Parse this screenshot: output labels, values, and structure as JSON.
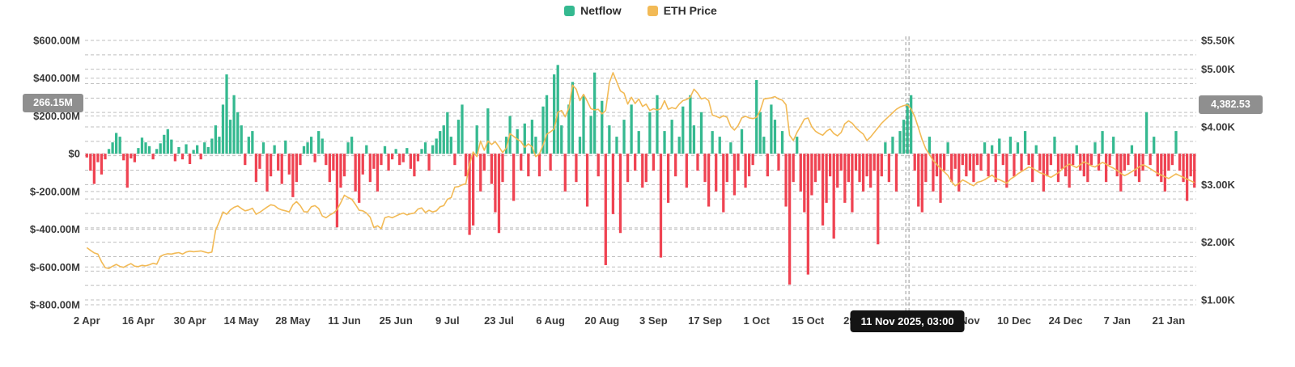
{
  "legend": {
    "items": [
      {
        "label": "Netflow",
        "color": "#35b990"
      },
      {
        "label": "ETH Price",
        "color": "#f2ba56"
      }
    ]
  },
  "crosshair": {
    "netflow_badge": "266.15M",
    "price_badge": "4,382.53",
    "badge_bg": "#8f8f8f"
  },
  "tooltip": {
    "date_label": "11 Nov 2025, 03:00"
  },
  "y_axis_left": {
    "labels": [
      {
        "text": "$600.00M",
        "value": 600
      },
      {
        "text": "$400.00M",
        "value": 400
      },
      {
        "text": "$200.00M",
        "value": 200
      },
      {
        "text": "$0",
        "value": 0
      },
      {
        "text": "$-200.00M",
        "value": -200
      },
      {
        "text": "$-400.00M",
        "value": -400
      },
      {
        "text": "$-600.00M",
        "value": -600
      },
      {
        "text": "$-800.00M",
        "value": -800
      }
    ],
    "grid_values": [
      600,
      400,
      200,
      0,
      -200,
      -400,
      -600,
      -800
    ],
    "range_millions": [
      -800,
      600
    ]
  },
  "y_axis_right": {
    "labels": [
      {
        "text": "$5.50K",
        "value": 5500
      },
      {
        "text": "$5.00K",
        "value": 5000
      },
      {
        "text": "$4.00K",
        "value": 4000
      },
      {
        "text": "$3.00K",
        "value": 3000
      },
      {
        "text": "$2.00K",
        "value": 2000
      },
      {
        "text": "$1.00K",
        "value": 1000
      }
    ],
    "grid_values": [
      5500,
      5250,
      5000,
      4750,
      4500,
      4250,
      4000,
      3750,
      3500,
      3250,
      3000,
      2750,
      2500,
      2250,
      2000,
      1750,
      1500,
      1250,
      1000
    ],
    "range_usd": [
      1000,
      5500
    ]
  },
  "x_axis": {
    "labels": [
      {
        "text": "2 Apr",
        "index": 0
      },
      {
        "text": "16 Apr",
        "index": 14
      },
      {
        "text": "30 Apr",
        "index": 28
      },
      {
        "text": "14 May",
        "index": 42
      },
      {
        "text": "28 May",
        "index": 56
      },
      {
        "text": "11 Jun",
        "index": 70
      },
      {
        "text": "25 Jun",
        "index": 84
      },
      {
        "text": "9 Jul",
        "index": 98
      },
      {
        "text": "23 Jul",
        "index": 112
      },
      {
        "text": "6 Aug",
        "index": 126
      },
      {
        "text": "20 Aug",
        "index": 140
      },
      {
        "text": "3 Sep",
        "index": 154
      },
      {
        "text": "17 Sep",
        "index": 168
      },
      {
        "text": "1 Oct",
        "index": 182
      },
      {
        "text": "15 Oct",
        "index": 196
      },
      {
        "text": "29 Oct",
        "index": 210
      },
      {
        "text": "12 Nov",
        "index": 224
      },
      {
        "text": "26 Nov",
        "index": 238
      },
      {
        "text": "10 Dec",
        "index": 252
      },
      {
        "text": "24 Dec",
        "index": 266
      },
      {
        "text": "7 Jan",
        "index": 280
      },
      {
        "text": "21 Jan",
        "index": 294
      }
    ]
  },
  "chart_data": {
    "type": "combo",
    "x_start": "2 Apr 2025",
    "x_end": "28 Jan 2026",
    "x_unit": "day",
    "grid": "dashed",
    "legend_position": "top-center",
    "left_axis_range_millions": [
      -800,
      600
    ],
    "right_axis_range_usd": [
      1000,
      5500
    ],
    "highlighted_point": {
      "date": "11 Nov 2025, 03:00",
      "index": 223,
      "netflow_m": 266.15,
      "eth_price": 4382.53
    },
    "series": [
      {
        "name": "Netflow",
        "type": "bar",
        "unit": "USD millions",
        "color_positive": "#35b990",
        "color_negative": "#ef4352",
        "values": [
          -20,
          -90,
          -160,
          -45,
          -110,
          -30,
          25,
          60,
          110,
          90,
          -35,
          -180,
          -25,
          -45,
          30,
          85,
          60,
          40,
          -30,
          25,
          55,
          100,
          130,
          75,
          -40,
          35,
          -30,
          50,
          -55,
          20,
          45,
          -30,
          60,
          35,
          80,
          150,
          90,
          260,
          420,
          180,
          310,
          220,
          150,
          -60,
          90,
          120,
          -150,
          -80,
          60,
          -200,
          -120,
          45,
          -90,
          -160,
          70,
          -110,
          -230,
          -150,
          -60,
          40,
          60,
          90,
          -45,
          120,
          80,
          -60,
          -150,
          -90,
          -390,
          -180,
          -120,
          60,
          90,
          -200,
          -260,
          -110,
          45,
          -150,
          -80,
          -200,
          -60,
          40,
          -90,
          -30,
          25,
          -60,
          -45,
          30,
          -80,
          -120,
          -40,
          25,
          60,
          -90,
          45,
          80,
          120,
          150,
          220,
          90,
          -60,
          180,
          260,
          -120,
          -430,
          -380,
          150,
          -200,
          -90,
          240,
          -160,
          -310,
          -420,
          -150,
          90,
          200,
          -250,
          130,
          -90,
          160,
          -120,
          180,
          90,
          -120,
          250,
          310,
          -90,
          420,
          470,
          150,
          -200,
          260,
          380,
          -150,
          90,
          310,
          -280,
          200,
          430,
          -120,
          280,
          -590,
          150,
          -320,
          90,
          -420,
          180,
          -150,
          260,
          -90,
          120,
          -180,
          -150,
          220,
          -90,
          310,
          -550,
          120,
          -260,
          180,
          -120,
          90,
          250,
          -180,
          310,
          150,
          -90,
          220,
          -150,
          -280,
          120,
          -200,
          90,
          -310,
          -150,
          60,
          -220,
          -90,
          130,
          -180,
          -120,
          -60,
          390,
          220,
          90,
          -120,
          260,
          180,
          -90,
          120,
          -280,
          -693,
          -150,
          90,
          -200,
          -310,
          -640,
          -220,
          -150,
          -90,
          -380,
          -260,
          -120,
          -450,
          -180,
          -90,
          -260,
          -150,
          -310,
          -90,
          -150,
          -200,
          -120,
          -180,
          -90,
          -480,
          -120,
          60,
          -150,
          90,
          -200,
          120,
          180,
          266.15,
          310,
          -90,
          -280,
          -310,
          -150,
          90,
          -200,
          -120,
          -260,
          -90,
          60,
          -150,
          -80,
          -200,
          -60,
          -120,
          -90,
          -150,
          -60,
          -90,
          60,
          -120,
          45,
          -150,
          80,
          -60,
          -180,
          90,
          -120,
          60,
          -90,
          120,
          -60,
          -150,
          45,
          -90,
          -200,
          -120,
          -60,
          90,
          -150,
          -80,
          -120,
          -180,
          -60,
          45,
          -90,
          -120,
          -150,
          -60,
          60,
          -90,
          120,
          -150,
          -60,
          90,
          -120,
          -200,
          -90,
          -60,
          45,
          -120,
          -150,
          -90,
          220,
          -60,
          90,
          -120,
          -150,
          -200,
          -90,
          -60,
          120,
          -90,
          -150,
          -250,
          -120,
          -180
        ]
      },
      {
        "name": "ETH Price",
        "type": "line",
        "unit": "USD",
        "color": "#f2ba56",
        "values": [
          1905,
          1860,
          1815,
          1795,
          1660,
          1560,
          1545,
          1585,
          1615,
          1580,
          1565,
          1600,
          1630,
          1585,
          1577,
          1600,
          1590,
          1610,
          1635,
          1620,
          1755,
          1785,
          1800,
          1795,
          1810,
          1820,
          1795,
          1830,
          1845,
          1835,
          1842,
          1850,
          1832,
          1815,
          1830,
          2210,
          2355,
          2525,
          2485,
          2560,
          2605,
          2630,
          2585,
          2545,
          2560,
          2590,
          2485,
          2520,
          2565,
          2610,
          2650,
          2635,
          2585,
          2560,
          2545,
          2525,
          2650,
          2705,
          2635,
          2530,
          2525,
          2615,
          2635,
          2585,
          2455,
          2425,
          2470,
          2505,
          2565,
          2685,
          2815,
          2775,
          2745,
          2655,
          2555,
          2545,
          2505,
          2435,
          2255,
          2285,
          2235,
          2425,
          2445,
          2425,
          2455,
          2485,
          2505,
          2475,
          2495,
          2505,
          2575,
          2595,
          2515,
          2555,
          2525,
          2545,
          2615,
          2635,
          2745,
          2775,
          2955,
          2965,
          2995,
          3015,
          3355,
          3565,
          3485,
          3755,
          3595,
          3755,
          3695,
          3745,
          3655,
          3555,
          3635,
          3885,
          3835,
          3785,
          3745,
          3645,
          3705,
          3655,
          3485,
          3535,
          3685,
          3875,
          3915,
          3965,
          4255,
          4285,
          4175,
          4325,
          4725,
          4655,
          4455,
          4565,
          4445,
          4315,
          4295,
          4305,
          4225,
          4285,
          4765,
          4940,
          4785,
          4625,
          4585,
          4395,
          4515,
          4405,
          4485,
          4355,
          4395,
          4285,
          4315,
          4295,
          4315,
          4455,
          4305,
          4335,
          4315,
          4395,
          4455,
          4475,
          4515,
          4655,
          4585,
          4485,
          4505,
          4455,
          4205,
          4185,
          4155,
          4195,
          4165,
          4005,
          3945,
          4025,
          4155,
          4185,
          4155,
          4145,
          4165,
          4285,
          4485,
          4495,
          4505,
          4525,
          4485,
          4465,
          4385,
          3855,
          3765,
          3905,
          4015,
          4135,
          4155,
          4005,
          3925,
          3885,
          3855,
          3925,
          3965,
          3885,
          3845,
          3905,
          4055,
          4105,
          4065,
          3985,
          3925,
          3875,
          3765,
          3825,
          3905,
          3985,
          4065,
          4125,
          4185,
          4245,
          4305,
          4345,
          4370,
          4382.53,
          4310,
          4180,
          3980,
          3780,
          3620,
          3520,
          3420,
          3350,
          3280,
          3220,
          3160,
          3050,
          2980,
          3020,
          3080,
          3050,
          3010,
          2980,
          3040,
          3055,
          3085,
          3125,
          3165,
          3105,
          3085,
          3055,
          3025,
          3095,
          3135,
          3185,
          3225,
          3265,
          3305,
          3285,
          3245,
          3205,
          3185,
          3155,
          3125,
          3165,
          3205,
          3265,
          3315,
          3355,
          3325,
          3295,
          3345,
          3395,
          3365,
          3325,
          3305,
          3345,
          3385,
          3355,
          3315,
          3285,
          3245,
          3195,
          3155,
          3185,
          3225,
          3265,
          3305,
          3345,
          3315,
          3275,
          3235,
          3195,
          3165,
          3135,
          3105,
          3145,
          3185,
          3155,
          3125,
          3095,
          3065,
          3035
        ]
      }
    ]
  }
}
